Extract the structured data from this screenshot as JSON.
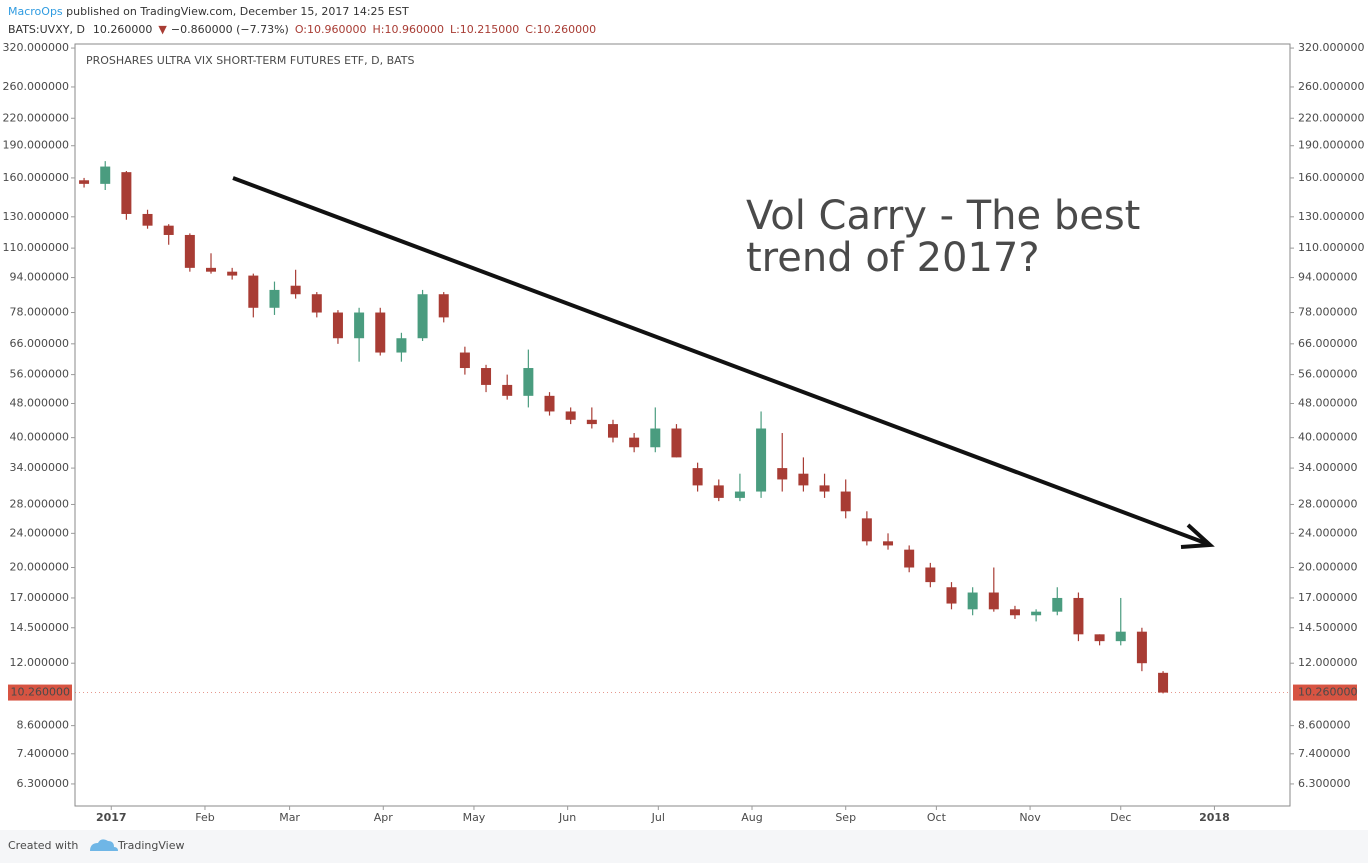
{
  "header": {
    "author": "MacroOps",
    "published": " published on TradingView.com, December 15, 2017 14:25 EST",
    "symbol": "BATS:UVXY, D",
    "price": "10.260000",
    "change": "−0.860000 (−7.73%)",
    "open": "O:10.960000",
    "high": "H:10.960000",
    "low": "L:10.215000",
    "close": "C:10.260000"
  },
  "footer": {
    "created": "Created with",
    "brand": "TradingView"
  },
  "chart_data": {
    "type": "candlestick",
    "legend": "PROSHARES ULTRA VIX SHORT-TERM FUTURES ETF, D, BATS",
    "annotation": [
      "Vol Carry - The best",
      "trend of 2017?"
    ],
    "log_y": true,
    "grid": false,
    "up_color": "#4a9c7f",
    "down_color": "#a83c34",
    "price_tag_color": "#d75442",
    "last_price": 10.26,
    "last_price_label": "10.260000",
    "xlim": [
      -12,
      390
    ],
    "ylim": [
      5.6,
      327
    ],
    "xticks": [
      {
        "value": 0,
        "label": "2017"
      },
      {
        "value": 31,
        "label": "Feb"
      },
      {
        "value": 59,
        "label": "Mar"
      },
      {
        "value": 90,
        "label": "Apr"
      },
      {
        "value": 120,
        "label": "May"
      },
      {
        "value": 151,
        "label": "Jun"
      },
      {
        "value": 181,
        "label": "Jul"
      },
      {
        "value": 212,
        "label": "Aug"
      },
      {
        "value": 243,
        "label": "Sep"
      },
      {
        "value": 273,
        "label": "Oct"
      },
      {
        "value": 304,
        "label": "Nov"
      },
      {
        "value": 334,
        "label": "Dec"
      },
      {
        "value": 365,
        "label": "2018"
      }
    ],
    "yticks": [
      {
        "value": 320,
        "label": "320.000000"
      },
      {
        "value": 260,
        "label": "260.000000"
      },
      {
        "value": 220,
        "label": "220.000000"
      },
      {
        "value": 190,
        "label": "190.000000"
      },
      {
        "value": 160,
        "label": "160.000000"
      },
      {
        "value": 130,
        "label": "130.000000"
      },
      {
        "value": 110,
        "label": "110.000000"
      },
      {
        "value": 94,
        "label": "94.000000"
      },
      {
        "value": 78,
        "label": "78.000000"
      },
      {
        "value": 66,
        "label": "66.000000"
      },
      {
        "value": 56,
        "label": "56.000000"
      },
      {
        "value": 48,
        "label": "48.000000"
      },
      {
        "value": 40,
        "label": "40.000000"
      },
      {
        "value": 34,
        "label": "34.000000"
      },
      {
        "value": 28,
        "label": "28.000000"
      },
      {
        "value": 24,
        "label": "24.000000"
      },
      {
        "value": 20,
        "label": "20.000000"
      },
      {
        "value": 17,
        "label": "17.000000"
      },
      {
        "value": 14.5,
        "label": "14.500000"
      },
      {
        "value": 12,
        "label": "12.000000"
      },
      {
        "value": 8.6,
        "label": "8.600000"
      },
      {
        "value": 7.4,
        "label": "7.400000"
      },
      {
        "value": 6.3,
        "label": "6.300000"
      }
    ],
    "x": [
      -9,
      -2,
      5,
      12,
      19,
      26,
      33,
      40,
      47,
      54,
      61,
      68,
      75,
      82,
      89,
      96,
      103,
      110,
      117,
      124,
      131,
      138,
      145,
      152,
      159,
      166,
      173,
      180,
      187,
      194,
      201,
      208,
      215,
      222,
      229,
      236,
      243,
      250,
      257,
      264,
      271,
      278,
      285,
      292,
      299,
      306,
      313,
      320,
      327,
      334,
      341,
      348
    ],
    "open": [
      158,
      155,
      165,
      132,
      124,
      118,
      99,
      97,
      95,
      80,
      90,
      86,
      78,
      68,
      78,
      63,
      68,
      86,
      63,
      58,
      53,
      50,
      50,
      46,
      44,
      43,
      40,
      38,
      42,
      34,
      31,
      29,
      30,
      34,
      33,
      31,
      30,
      26,
      23,
      22,
      20,
      18,
      16,
      17.5,
      16,
      15.5,
      15.8,
      17,
      14,
      13.5,
      14.2,
      11.4
    ],
    "high": [
      160,
      175,
      166,
      135,
      125,
      119,
      107,
      99,
      96,
      92,
      98,
      87,
      79,
      80,
      80,
      70,
      88,
      87,
      65,
      59,
      56,
      64,
      51,
      47,
      47,
      44,
      41,
      47,
      43,
      35,
      32,
      33,
      46,
      41,
      36,
      33,
      32,
      27,
      24,
      22.5,
      20.5,
      18.5,
      18,
      20,
      16.3,
      16,
      18,
      17.5,
      14,
      17,
      14.5,
      11.5
    ],
    "low": [
      152,
      150,
      128,
      122,
      112,
      97,
      96,
      93,
      76,
      77,
      84,
      76,
      66,
      60,
      62,
      60,
      67,
      74,
      56,
      51,
      49,
      47,
      45,
      43,
      42,
      39,
      37,
      37,
      36,
      30,
      28.5,
      28.5,
      29,
      30,
      30,
      29,
      26,
      22.5,
      22,
      19.5,
      18,
      16,
      15.5,
      15.8,
      15.2,
      15,
      15.5,
      13.5,
      13.2,
      13.2,
      11.5,
      10.215
    ],
    "close": [
      155,
      170,
      132,
      124,
      118,
      99,
      97,
      95,
      80,
      88,
      86,
      78,
      68,
      78,
      63,
      68,
      86,
      76,
      58,
      53,
      50,
      58,
      46,
      44,
      43,
      40,
      38,
      42,
      36,
      31,
      29,
      30,
      42,
      32,
      31,
      30,
      27,
      23,
      22.5,
      20,
      18.5,
      16.5,
      17.5,
      16,
      15.5,
      15.8,
      17,
      14,
      13.5,
      14.2,
      12,
      10.26
    ]
  }
}
